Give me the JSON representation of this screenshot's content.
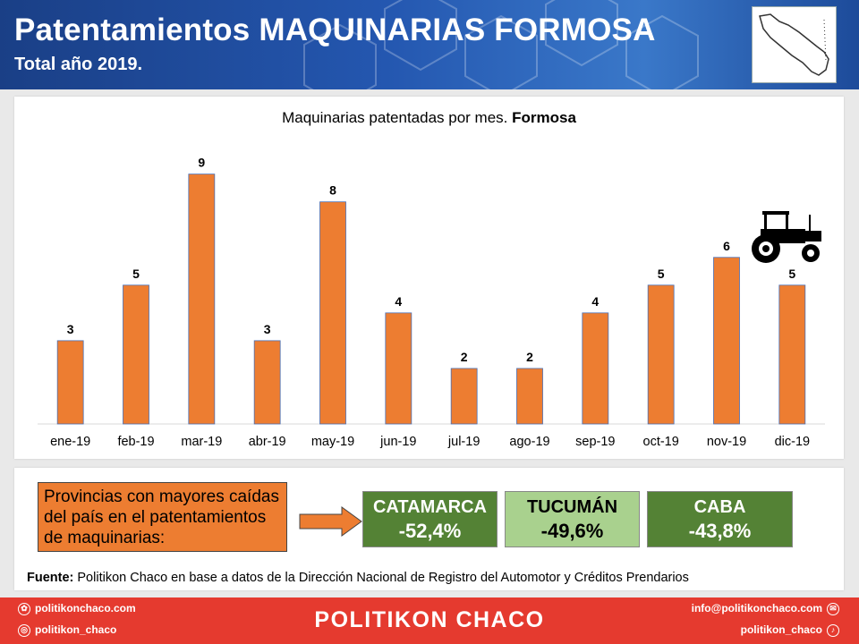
{
  "header": {
    "title": "Patentamientos MAQUINARIAS FORMOSA",
    "subtitle": "Total año 2019."
  },
  "chart_data": {
    "type": "bar",
    "title": "Maquinarias patentadas por mes.",
    "title_bold": "Formosa",
    "categories": [
      "ene-19",
      "feb-19",
      "mar-19",
      "abr-19",
      "may-19",
      "jun-19",
      "jul-19",
      "ago-19",
      "sep-19",
      "oct-19",
      "nov-19",
      "dic-19"
    ],
    "values": [
      3,
      5,
      9,
      3,
      8,
      4,
      2,
      2,
      4,
      5,
      6,
      5
    ],
    "ylim": [
      0,
      10
    ],
    "bar_color": "#ed7d31",
    "grid": false,
    "legend": "none"
  },
  "info": {
    "note": "Provincias con mayores caídas del país en el patentamientos de maquinarias:",
    "stats": [
      {
        "name": "CATAMARCA",
        "value": "-52,4%",
        "bg": "#548235",
        "fg": "#ffffff"
      },
      {
        "name": "TUCUMÁN",
        "value": "-49,6%",
        "bg": "#a9d18e",
        "fg": "#000000"
      },
      {
        "name": "CABA",
        "value": "-43,8%",
        "bg": "#548235",
        "fg": "#ffffff"
      }
    ],
    "source_label": "Fuente:",
    "source_text": "Politikon Chaco en base a datos de la Dirección Nacional de Registro del Automotor y Créditos Prendarios"
  },
  "footer": {
    "brand": "POLITIKON CHACO",
    "website": "politikonchaco.com",
    "instagram": "politikon_chaco",
    "email": "info@politikonchaco.com",
    "twitter": "politikon_chaco"
  },
  "colors": {
    "accent_orange": "#ed7d31",
    "header_blue": "#1f4e9c",
    "footer_red": "#e53a2f"
  },
  "icons": [
    "formosa-map-icon",
    "tractor-icon",
    "arrow-right-icon",
    "web-icon",
    "instagram-icon",
    "email-icon",
    "twitter-icon"
  ]
}
